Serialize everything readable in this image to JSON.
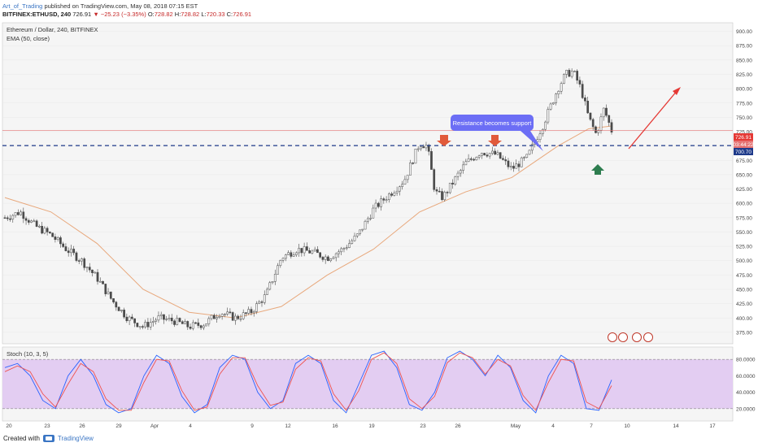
{
  "header": {
    "author": "Art_of_Trading",
    "published": "published on TradingView.com, May 08, 2018 07:15 EST",
    "symbol_line_left": "BITFINEX:ETHUSD, 240",
    "last_close": "726.91",
    "change": "▼ −25.23 (−3.35%)",
    "ohlc_o_label": "O:",
    "ohlc_o": "728.82",
    "ohlc_h_label": "H:",
    "ohlc_h": "728.82",
    "ohlc_l_label": "L:",
    "ohlc_l": "720.33",
    "ohlc_c_label": "C:",
    "ohlc_c": "726.91"
  },
  "legend": {
    "title": "Ethereum / Dollar, 240, BITFINEX",
    "ema": "EMA (50, close)",
    "stoch": "Stoch (10, 3, 5)"
  },
  "annotation": {
    "text": "Resistance becomes support"
  },
  "price_labels": {
    "last": "726.91",
    "countdown": "03:44:22",
    "support": "700.70"
  },
  "footer": {
    "created": "Created with",
    "brand": "TradingView"
  },
  "colors": {
    "bull": "#26a69a",
    "bear": "#ef5350",
    "candle_body": "#4a4a4a",
    "ema": "#e8a87c",
    "support_line": "#1e3a8a",
    "last_price": "#e53935",
    "callout": "#6c6ef5",
    "stoch_fill": "#e1c9f2",
    "stoch_k": "#2962ff",
    "stoch_d": "#ef5350",
    "arrow_down": "#e15a3a",
    "arrow_up": "#2e7d4f",
    "trend_arrow": "#e53935"
  },
  "chart_data": [
    {
      "type": "candlestick",
      "title": "Ethereum / Dollar, 240, BITFINEX",
      "ylim": [
        355,
        915
      ],
      "y_ticks": [
        "900.00",
        "875.00",
        "850.00",
        "825.00",
        "800.00",
        "775.00",
        "750.00",
        "725.00",
        "700.00",
        "675.00",
        "650.00",
        "625.00",
        "600.00",
        "575.00",
        "550.00",
        "525.00",
        "500.00",
        "475.00",
        "450.00",
        "425.00",
        "400.00",
        "375.00"
      ],
      "x_ticks": [
        "20",
        "23",
        "26",
        "29",
        "Apr",
        "4",
        "9",
        "12",
        "16",
        "19",
        "23",
        "26",
        "May",
        "4",
        "7",
        "10",
        "14",
        "17"
      ],
      "close_path": [
        {
          "x": 0,
          "y": 575
        },
        {
          "x": 2,
          "y": 585
        },
        {
          "x": 4,
          "y": 560
        },
        {
          "x": 6,
          "y": 545
        },
        {
          "x": 8,
          "y": 520
        },
        {
          "x": 10,
          "y": 500
        },
        {
          "x": 12,
          "y": 470
        },
        {
          "x": 14,
          "y": 430
        },
        {
          "x": 16,
          "y": 400
        },
        {
          "x": 18,
          "y": 385
        },
        {
          "x": 20,
          "y": 400
        },
        {
          "x": 22,
          "y": 395
        },
        {
          "x": 24,
          "y": 385
        },
        {
          "x": 26,
          "y": 390
        },
        {
          "x": 28,
          "y": 410
        },
        {
          "x": 30,
          "y": 400
        },
        {
          "x": 32,
          "y": 410
        },
        {
          "x": 34,
          "y": 440
        },
        {
          "x": 36,
          "y": 505
        },
        {
          "x": 38,
          "y": 520
        },
        {
          "x": 40,
          "y": 515
        },
        {
          "x": 42,
          "y": 505
        },
        {
          "x": 44,
          "y": 520
        },
        {
          "x": 46,
          "y": 545
        },
        {
          "x": 48,
          "y": 590
        },
        {
          "x": 50,
          "y": 615
        },
        {
          "x": 52,
          "y": 640
        },
        {
          "x": 54,
          "y": 705
        },
        {
          "x": 55,
          "y": 700
        },
        {
          "x": 56,
          "y": 620
        },
        {
          "x": 57,
          "y": 610
        },
        {
          "x": 58,
          "y": 630
        },
        {
          "x": 60,
          "y": 670
        },
        {
          "x": 62,
          "y": 690
        },
        {
          "x": 64,
          "y": 685
        },
        {
          "x": 66,
          "y": 660
        },
        {
          "x": 68,
          "y": 680
        },
        {
          "x": 70,
          "y": 735
        },
        {
          "x": 72,
          "y": 800
        },
        {
          "x": 73,
          "y": 825
        },
        {
          "x": 74,
          "y": 830
        },
        {
          "x": 75,
          "y": 800
        },
        {
          "x": 76,
          "y": 750
        },
        {
          "x": 77,
          "y": 720
        },
        {
          "x": 78,
          "y": 765
        },
        {
          "x": 79,
          "y": 727
        }
      ],
      "ema_50": [
        {
          "x": 0,
          "y": 610
        },
        {
          "x": 6,
          "y": 585
        },
        {
          "x": 12,
          "y": 530
        },
        {
          "x": 18,
          "y": 450
        },
        {
          "x": 24,
          "y": 410
        },
        {
          "x": 30,
          "y": 400
        },
        {
          "x": 36,
          "y": 420
        },
        {
          "x": 42,
          "y": 475
        },
        {
          "x": 48,
          "y": 520
        },
        {
          "x": 54,
          "y": 585
        },
        {
          "x": 60,
          "y": 620
        },
        {
          "x": 66,
          "y": 645
        },
        {
          "x": 72,
          "y": 700
        },
        {
          "x": 76,
          "y": 730
        },
        {
          "x": 79,
          "y": 735
        }
      ],
      "last_price": 726.91,
      "support_level": 700.7
    },
    {
      "type": "line",
      "title": "Stoch (10, 3, 5)",
      "ylim": [
        5,
        95
      ],
      "y_ticks": [
        "80.0000",
        "60.0000",
        "40.0000",
        "20.0000"
      ],
      "bands": [
        80,
        20
      ],
      "series": [
        {
          "values": [
            70,
            75,
            60,
            30,
            20,
            60,
            80,
            60,
            25,
            15,
            20,
            60,
            85,
            75,
            35,
            15,
            25,
            70,
            85,
            80,
            40,
            20,
            30,
            75,
            85,
            75,
            30,
            15,
            50,
            85,
            90,
            70,
            25,
            18,
            40,
            82,
            90,
            80,
            60,
            85,
            70,
            30,
            15,
            60,
            85,
            75,
            20,
            18,
            55
          ]
        },
        {
          "values": [
            65,
            72,
            65,
            38,
            22,
            50,
            75,
            65,
            32,
            18,
            18,
            52,
            80,
            78,
            42,
            18,
            22,
            62,
            82,
            82,
            48,
            24,
            28,
            68,
            82,
            78,
            38,
            18,
            42,
            80,
            88,
            75,
            32,
            20,
            35,
            76,
            88,
            82,
            62,
            80,
            72,
            36,
            18,
            52,
            80,
            78,
            28,
            20,
            48
          ]
        }
      ]
    }
  ]
}
